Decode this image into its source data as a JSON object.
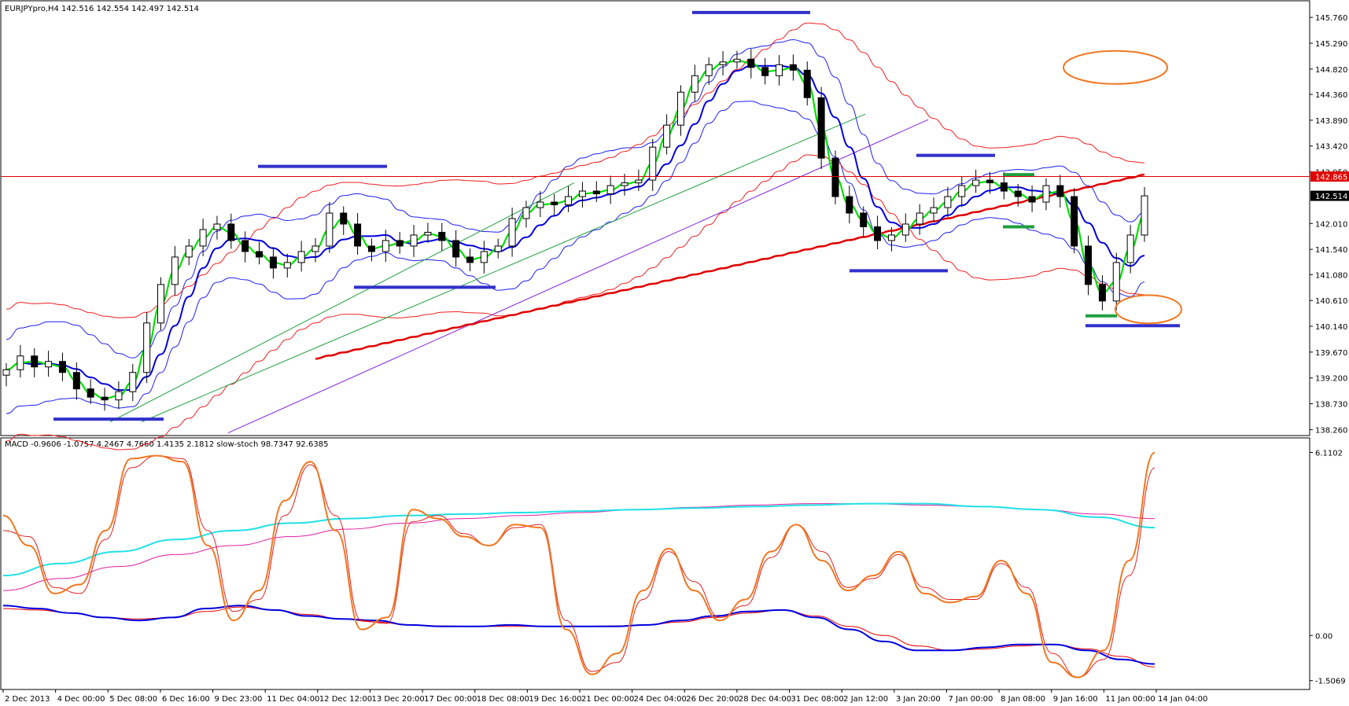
{
  "chart_data": {
    "type": "candlestick",
    "symbol_header": "EURJPYpro,H4  142.516 142.554 142.497 142.514",
    "price_ticks": [
      "145.760",
      "145.290",
      "144.820",
      "144.360",
      "143.890",
      "143.420",
      "142.950",
      "142.010",
      "141.540",
      "141.080",
      "140.610",
      "140.140",
      "139.670",
      "139.200",
      "138.730",
      "138.260"
    ],
    "price_range": [
      138.18,
      146.02
    ],
    "current_price": "142.514",
    "ref_line_price": "142.865",
    "ref_line_value": 142.865,
    "current_value": 142.514,
    "time_labels": [
      "2 Dec 2013",
      "4 Dec 00:00",
      "5 Dec 08:00",
      "6 Dec 16:00",
      "9 Dec 23:00",
      "11 Dec 04:00",
      "12 Dec 12:00",
      "13 Dec 20:00",
      "17 Dec 00:00",
      "18 Dec 08:00",
      "19 Dec 16:00",
      "21 Dec 00:00",
      "24 Dec 04:00",
      "26 Dec 20:00",
      "28 Dec 04:00",
      "31 Dec 08:00",
      "2 Jan 12:00",
      "3 Jan 20:00",
      "7 Jan 00:00",
      "8 Jan 08:00",
      "9 Jan 16:00",
      "11 Jan 00:00",
      "14 Jan 04:00"
    ],
    "close_path": [
      139.35,
      139.6,
      139.4,
      139.5,
      139.3,
      139.0,
      138.85,
      138.8,
      138.95,
      139.3,
      140.2,
      140.9,
      141.4,
      141.6,
      141.9,
      142.0,
      141.7,
      141.5,
      141.4,
      141.2,
      141.3,
      141.5,
      141.6,
      142.2,
      142.0,
      141.6,
      141.5,
      141.7,
      141.6,
      141.8,
      141.85,
      141.7,
      141.4,
      141.3,
      141.5,
      141.6,
      142.1,
      142.3,
      142.4,
      142.35,
      142.5,
      142.6,
      142.55,
      142.7,
      142.75,
      142.8,
      143.4,
      143.8,
      144.4,
      144.7,
      144.9,
      144.95,
      145.0,
      144.85,
      144.7,
      144.9,
      144.8,
      144.3,
      143.2,
      142.5,
      142.2,
      141.95,
      141.7,
      141.8,
      142.0,
      142.2,
      142.3,
      142.5,
      142.7,
      142.8,
      142.75,
      142.6,
      142.5,
      142.4,
      142.7,
      142.5,
      141.6,
      140.9,
      140.6,
      141.3,
      141.8,
      142.514
    ],
    "indicator_header": "MACD -0.9606 -1.0757 4.2467 4.7660 1.4135 2.1812  slow-stoch 98.7347 92.6385",
    "indicator_ticks": [
      "6.1102",
      "0.00",
      "-1.5069"
    ],
    "indicator_range": [
      -1.62,
      6.2
    ],
    "macd_main": [
      1.0,
      0.9,
      0.75,
      0.6,
      0.5,
      0.6,
      0.9,
      1.0,
      0.85,
      0.65,
      0.55,
      0.5,
      0.35,
      0.3,
      0.3,
      0.35,
      0.3,
      0.3,
      0.3,
      0.35,
      0.5,
      0.65,
      0.8,
      0.85,
      0.6,
      0.2,
      -0.2,
      -0.5,
      -0.5,
      -0.4,
      -0.3,
      -0.3,
      -0.5,
      -0.8,
      -0.95
    ],
    "macd_signal": [
      0.9,
      0.85,
      0.75,
      0.6,
      0.55,
      0.6,
      0.8,
      0.95,
      0.85,
      0.7,
      0.55,
      0.45,
      0.35,
      0.32,
      0.3,
      0.3,
      0.3,
      0.3,
      0.32,
      0.35,
      0.45,
      0.6,
      0.75,
      0.85,
      0.65,
      0.3,
      0.0,
      -0.35,
      -0.5,
      -0.45,
      -0.35,
      -0.3,
      -0.45,
      -0.7,
      -1.05
    ],
    "ema_cyan": [
      2.0,
      2.4,
      2.8,
      3.2,
      3.5,
      3.75,
      3.9,
      4.0,
      4.05,
      4.1,
      4.15,
      4.2,
      4.25,
      4.3,
      4.35,
      4.4,
      4.4,
      4.3,
      4.2,
      3.95,
      3.6
    ],
    "ema_magenta": [
      1.5,
      1.9,
      2.3,
      2.7,
      3.0,
      3.3,
      3.55,
      3.75,
      3.9,
      4.0,
      4.1,
      4.2,
      4.28,
      4.35,
      4.4,
      4.4,
      4.35,
      4.3,
      4.2,
      4.05,
      3.9
    ],
    "stoch_main": [
      4.0,
      3.0,
      1.4,
      1.7,
      3.5,
      5.9,
      6.0,
      5.8,
      3.0,
      0.5,
      1.5,
      4.5,
      5.8,
      3.5,
      0.2,
      0.6,
      4.2,
      3.9,
      3.3,
      3.0,
      3.7,
      3.6,
      0.2,
      -1.3,
      -0.6,
      1.5,
      2.9,
      1.5,
      0.5,
      1.2,
      2.8,
      3.7,
      2.5,
      1.5,
      2.0,
      2.8,
      1.4,
      1.1,
      1.3,
      2.5,
      1.4,
      -0.9,
      -1.4,
      -0.5,
      2.5,
      6.1
    ],
    "stoch_signal": [
      3.5,
      3.3,
      1.6,
      1.4,
      3.2,
      5.6,
      6.0,
      5.9,
      3.5,
      0.8,
      1.2,
      4.0,
      5.7,
      4.0,
      0.5,
      0.4,
      3.8,
      4.0,
      3.4,
      3.0,
      3.6,
      3.7,
      0.5,
      -1.2,
      -0.9,
      1.2,
      2.8,
      1.8,
      0.6,
      1.0,
      2.6,
      3.7,
      2.8,
      1.6,
      1.9,
      2.7,
      1.6,
      1.2,
      1.2,
      2.4,
      1.6,
      -0.6,
      -1.4,
      -0.8,
      2.0,
      5.6
    ],
    "colors": {
      "ref_line": "#e00000",
      "current_price_tag": "#000000",
      "ma_fast": "#00e000",
      "ma_mid": "#0000dd",
      "ma_slow": "#e00000",
      "bollinger_blue": "#2020ee",
      "bollinger_red": "#ee2020",
      "support_resistance": "#3030cc",
      "green_markers": "#20a040",
      "circle_markers": "#f07820",
      "macd_main": "#0000dd",
      "macd_signal": "#ee0000",
      "stoch_main": "#f07820",
      "stoch_signal": "#e02020",
      "ema_cyan": "#20e0e8",
      "ema_magenta": "#e020a0",
      "trendline_green": "#20a040",
      "trendline_purple": "#8020e0"
    }
  }
}
